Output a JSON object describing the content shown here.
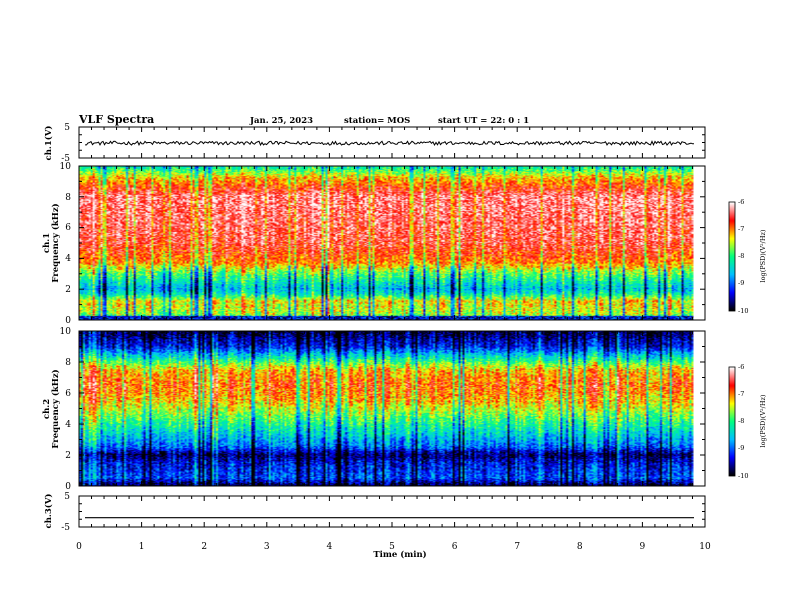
{
  "header": {
    "title": "VLF Spectra",
    "date": "Jan. 25, 2023",
    "station": "station= MOS",
    "start": "start UT =  22: 0  : 1"
  },
  "panels": {
    "ch1v": {
      "ylabel": "ch.1(V)",
      "ticks": [
        "5",
        "-5"
      ]
    },
    "ch1": {
      "ylabel_ch": "ch.1",
      "ylabel": "Frequency (kHz)",
      "ticks": [
        "0",
        "2",
        "4",
        "6",
        "8",
        "10"
      ]
    },
    "ch2": {
      "ylabel_ch": "ch.2",
      "ylabel": "Frequency (kHz)",
      "ticks": [
        "0",
        "2",
        "4",
        "6",
        "8",
        "10"
      ]
    },
    "ch3v": {
      "ylabel": "ch.3(V)",
      "ticks": [
        "5",
        "-5"
      ]
    }
  },
  "colorbar": {
    "label": "log(PSD)(V²/Hz)",
    "ticks": [
      "-6",
      "-7",
      "-8",
      "-9",
      "-10"
    ]
  },
  "xaxis": {
    "label": "Time (min)",
    "ticks": [
      "0",
      "1",
      "2",
      "3",
      "4",
      "5",
      "6",
      "7",
      "8",
      "9",
      "10"
    ]
  },
  "chart_data": {
    "type": "heatmap",
    "title": "VLF Spectra",
    "xlabel": "Time (min)",
    "xlim": [
      0,
      10
    ],
    "data_end_min": 9.83,
    "waveforms": [
      {
        "name": "ch.1(V)",
        "ylim": [
          -5,
          5
        ],
        "level": -0.2,
        "noise": 0.6
      },
      {
        "name": "ch.3(V)",
        "ylim": [
          -5,
          5
        ],
        "level": -2,
        "noise": 0
      }
    ],
    "spectrograms": [
      {
        "name": "ch.1",
        "ylabel": "Frequency (kHz)",
        "ylim": [
          0,
          10
        ],
        "zlim": [
          -10,
          -6
        ],
        "colorbar_label": "log(PSD)(V²/Hz)",
        "profile_khz_logpsd": [
          [
            0,
            -9.6
          ],
          [
            0.3,
            -7.6
          ],
          [
            1.2,
            -7.3
          ],
          [
            1.7,
            -8.3
          ],
          [
            2.0,
            -8.6
          ],
          [
            2.5,
            -8.2
          ],
          [
            3.0,
            -7.8
          ],
          [
            3.7,
            -7.0
          ],
          [
            5,
            -6.5
          ],
          [
            8,
            -6.3
          ],
          [
            9.3,
            -7.2
          ],
          [
            10,
            -8.2
          ]
        ]
      },
      {
        "name": "ch.2",
        "ylabel": "Frequency (kHz)",
        "ylim": [
          0,
          10
        ],
        "zlim": [
          -10,
          -6
        ],
        "colorbar_label": "log(PSD)(V²/Hz)",
        "profile_khz_logpsd": [
          [
            0,
            -9.9
          ],
          [
            0.5,
            -9.1
          ],
          [
            1.5,
            -9.4
          ],
          [
            2.0,
            -9.8
          ],
          [
            2.5,
            -9.0
          ],
          [
            3.5,
            -8.4
          ],
          [
            4.5,
            -7.8
          ],
          [
            5.5,
            -7.2
          ],
          [
            6.5,
            -6.9
          ],
          [
            7.5,
            -7.2
          ],
          [
            8.3,
            -8.3
          ],
          [
            9,
            -9.3
          ],
          [
            10,
            -9.9
          ]
        ]
      }
    ],
    "colormap": [
      "#000000",
      "#0000ff",
      "#00c0ff",
      "#00ff80",
      "#ffff00",
      "#ff0000",
      "#ffffff"
    ]
  }
}
